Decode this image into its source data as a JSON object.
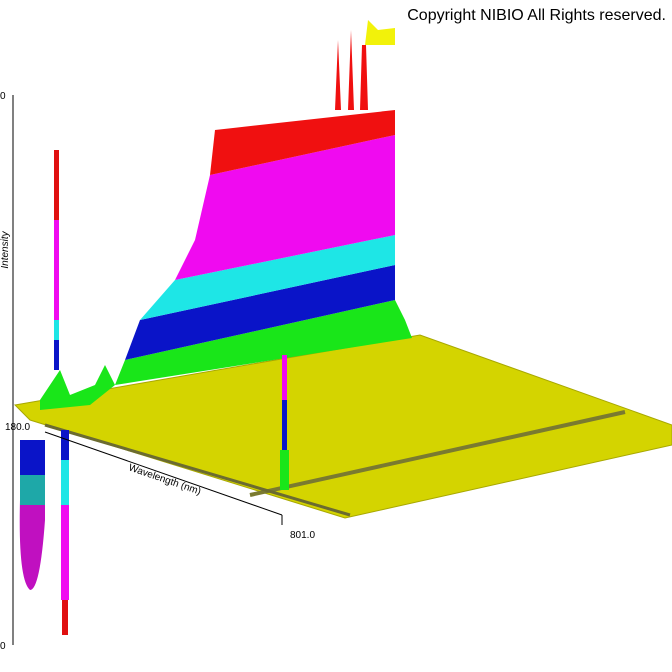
{
  "header": {
    "copyright": "Copyright NIBIO All Rights reserved."
  },
  "axes": {
    "intensity_label": "Intensity",
    "intensity_top": "0",
    "intensity_bottom": "0",
    "wavelength_label": "Wavelength (nm)",
    "wavelength_start": "180.0",
    "wavelength_end": "801.0"
  }
}
